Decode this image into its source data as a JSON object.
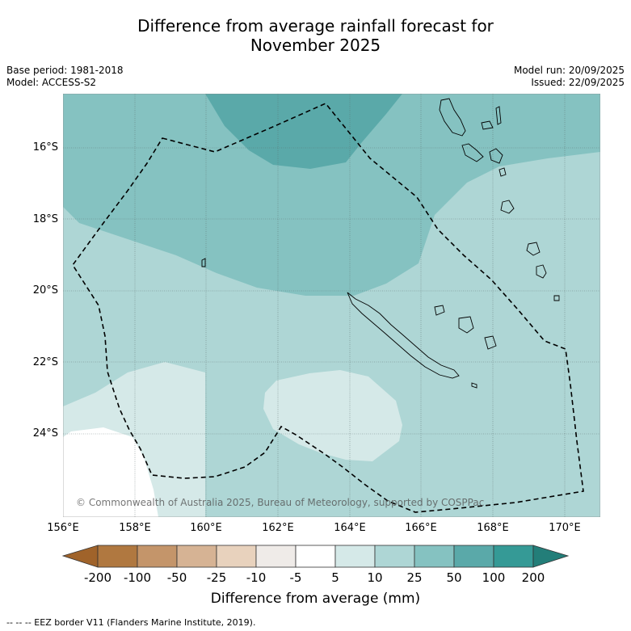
{
  "title_line1": "Difference from average rainfall forecast for",
  "title_line2": "November 2025",
  "meta_left": [
    "Base period: 1981-2018",
    "Model: ACCESS-S2"
  ],
  "meta_right": [
    "Model run: 20/09/2025",
    "Issued: 22/09/2025"
  ],
  "y_ticks": [
    "16°S",
    "18°S",
    "20°S",
    "22°S",
    "24°S"
  ],
  "x_ticks": [
    "156°E",
    "158°E",
    "160°E",
    "162°E",
    "164°E",
    "166°E",
    "168°E",
    "170°E"
  ],
  "copyright": "© Commonwealth of Australia 2025, Bureau of Meteorology, supported by COSPPac",
  "colorbar": {
    "ticks": [
      "-200",
      "-100",
      "-50",
      "-25",
      "-10",
      "-5",
      "5",
      "10",
      "25",
      "50",
      "100",
      "200"
    ],
    "colors": [
      "#a0632a",
      "#b07840",
      "#c4956a",
      "#d6b394",
      "#e8d2bd",
      "#efebe8",
      "#ffffff",
      "#d5e9e8",
      "#aed6d5",
      "#85c2c1",
      "#5aa9a9",
      "#359a96",
      "#237e79"
    ],
    "label": "Difference from average (mm)"
  },
  "footer": "--  --  -- EEZ border V11 (Flanders Marine Institute, 2019)."
}
